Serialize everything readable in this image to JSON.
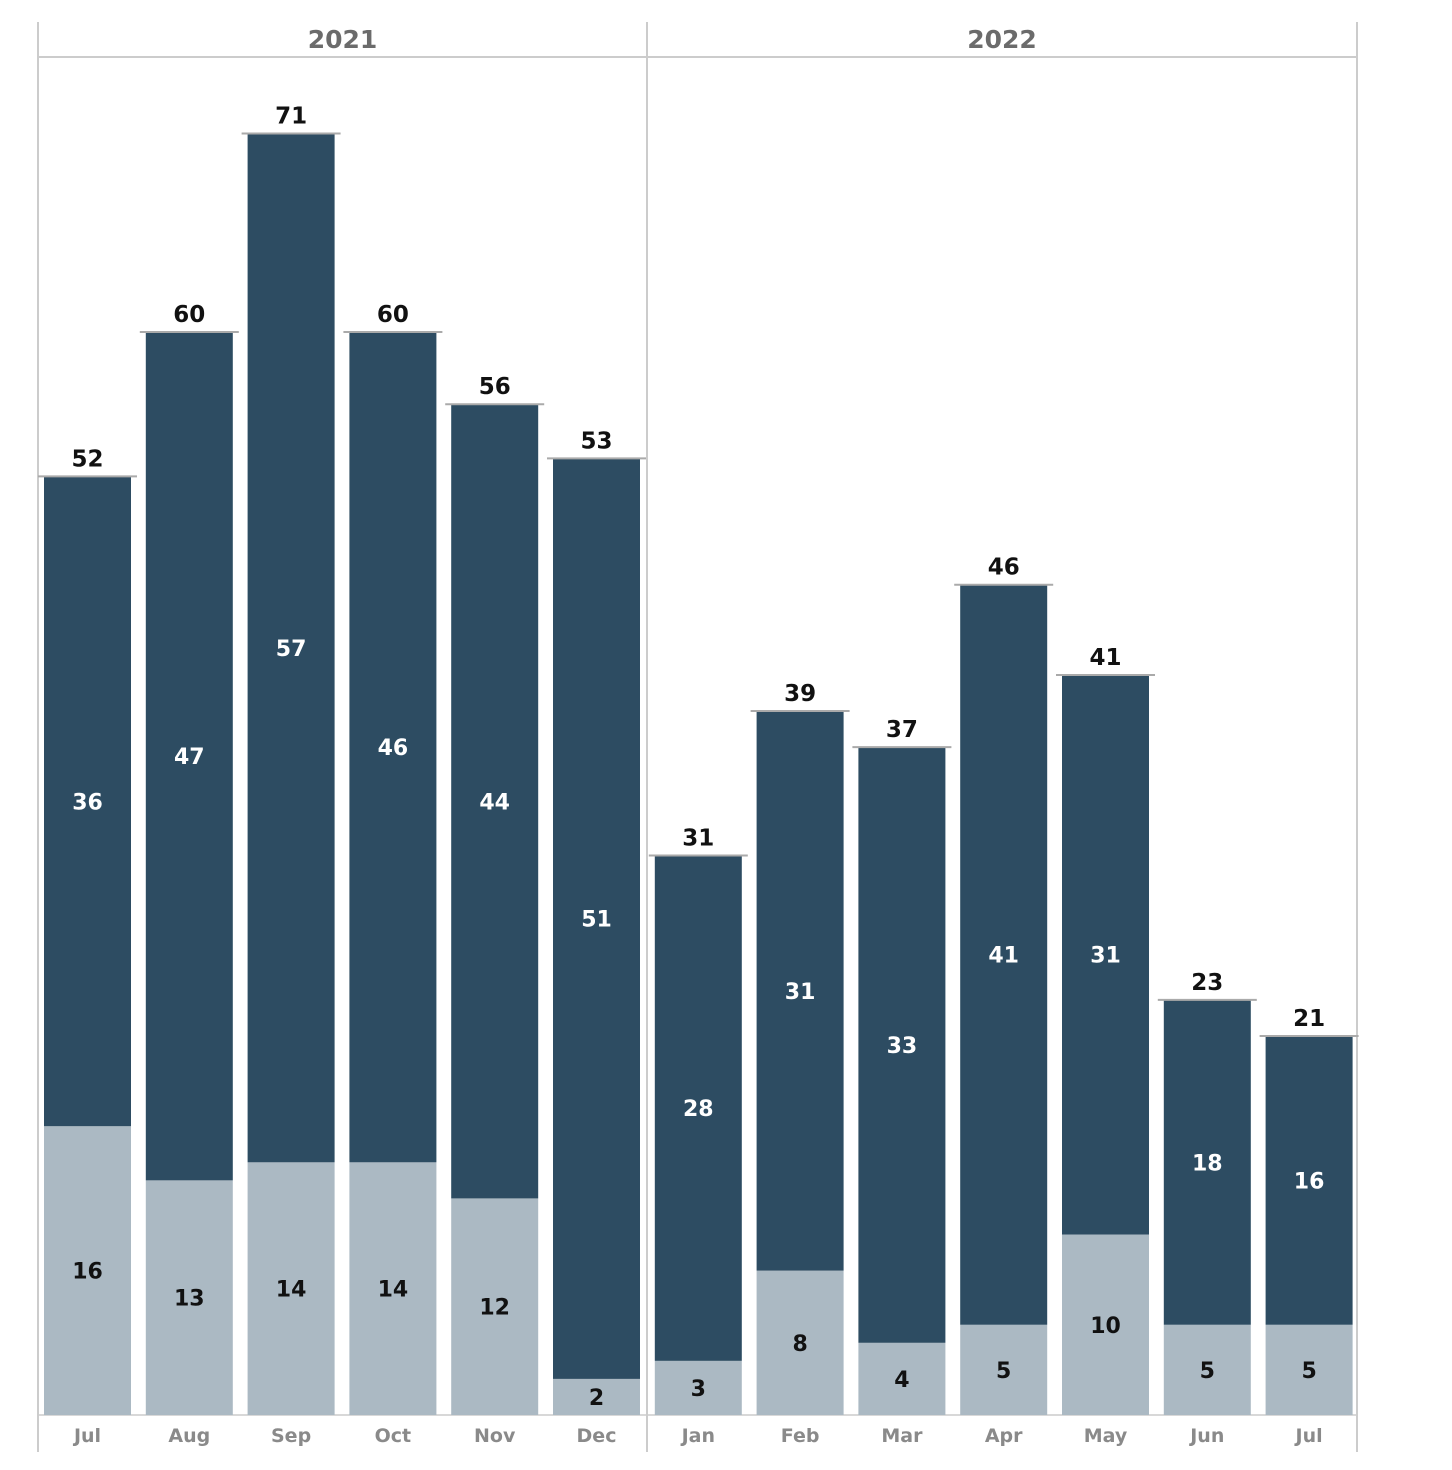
{
  "chart_data": {
    "type": "bar",
    "stacked": true,
    "year_groups": [
      {
        "label": "2021",
        "count": 6
      },
      {
        "label": "2022",
        "count": 7
      }
    ],
    "categories": [
      "Jul",
      "Aug",
      "Sep",
      "Oct",
      "Nov",
      "Dec",
      "Jan",
      "Feb",
      "Mar",
      "Apr",
      "May",
      "Jun",
      "Jul"
    ],
    "series": [
      {
        "color": "#abb9c3",
        "values": [
          16,
          13,
          14,
          14,
          12,
          2,
          3,
          8,
          4,
          5,
          10,
          5,
          5
        ]
      },
      {
        "color": "#2d4c62",
        "values": [
          36,
          47,
          57,
          46,
          44,
          51,
          28,
          31,
          33,
          41,
          31,
          18,
          16
        ]
      }
    ],
    "totals": [
      52,
      60,
      71,
      60,
      56,
      53,
      31,
      39,
      37,
      46,
      41,
      23,
      21
    ],
    "ylim": [
      0,
      78
    ],
    "grid": false,
    "legend": "none",
    "colors": {
      "frame": "#cccccc",
      "total_tick": "#aaaaaa"
    }
  }
}
